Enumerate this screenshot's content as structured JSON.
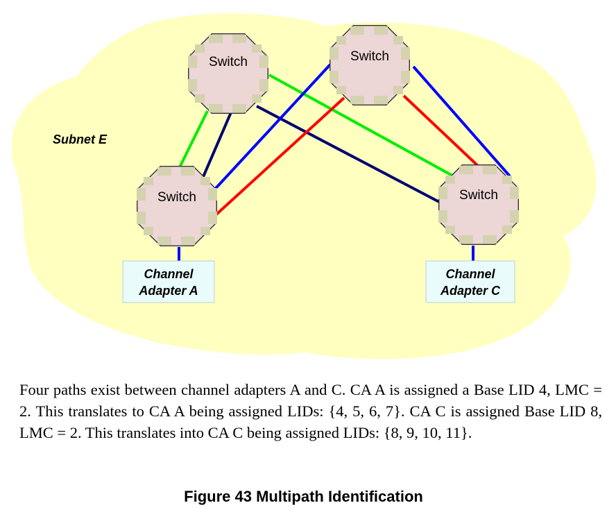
{
  "subnet": {
    "label": "Subnet E"
  },
  "switches": [
    {
      "id": "sw-top-left",
      "label": "Switch"
    },
    {
      "id": "sw-top-right",
      "label": "Switch"
    },
    {
      "id": "sw-bottom-left",
      "label": "Switch"
    },
    {
      "id": "sw-bottom-right",
      "label": "Switch"
    }
  ],
  "channel_adapters": [
    {
      "id": "ca-a",
      "line1": "Channel",
      "line2": "Adapter A"
    },
    {
      "id": "ca-c",
      "line1": "Channel",
      "line2": "Adapter C"
    }
  ],
  "links": [
    {
      "from": "sw-top-left",
      "to": "sw-bottom-left",
      "color": "#00ee00"
    },
    {
      "from": "sw-top-left",
      "to": "sw-bottom-left",
      "color": "#00006e"
    },
    {
      "from": "sw-top-left",
      "to": "sw-bottom-right",
      "color": "#00ee00"
    },
    {
      "from": "sw-top-left",
      "to": "sw-bottom-right",
      "color": "#00006e"
    },
    {
      "from": "sw-top-right",
      "to": "sw-bottom-left",
      "color": "#0000ff"
    },
    {
      "from": "sw-top-right",
      "to": "sw-bottom-left",
      "color": "#ff0000"
    },
    {
      "from": "sw-top-right",
      "to": "sw-bottom-right",
      "color": "#ff0000"
    },
    {
      "from": "sw-top-right",
      "to": "sw-bottom-right",
      "color": "#0000ff"
    },
    {
      "from": "sw-bottom-left",
      "to": "ca-a",
      "color": "#0000ff"
    },
    {
      "from": "sw-bottom-right",
      "to": "ca-c",
      "color": "#0000ff"
    }
  ],
  "colors": {
    "cloud_fill": "#ffffc0",
    "switch_fill": "#ecd6d6",
    "port_fill": "#d5d2b0",
    "ca_fill": "#e9fbfb"
  },
  "caption": "Four paths exist between channel adapters A and C. CA A is assigned a Base LID 4, LMC = 2. This translates to CA A being assigned LIDs: {4, 5, 6, 7}. CA C is assigned Base LID 8, LMC = 2. This translates into CA C being assigned LIDs: {8, 9, 10, 11}.",
  "figure_title": "Figure 43  Multipath Identification"
}
